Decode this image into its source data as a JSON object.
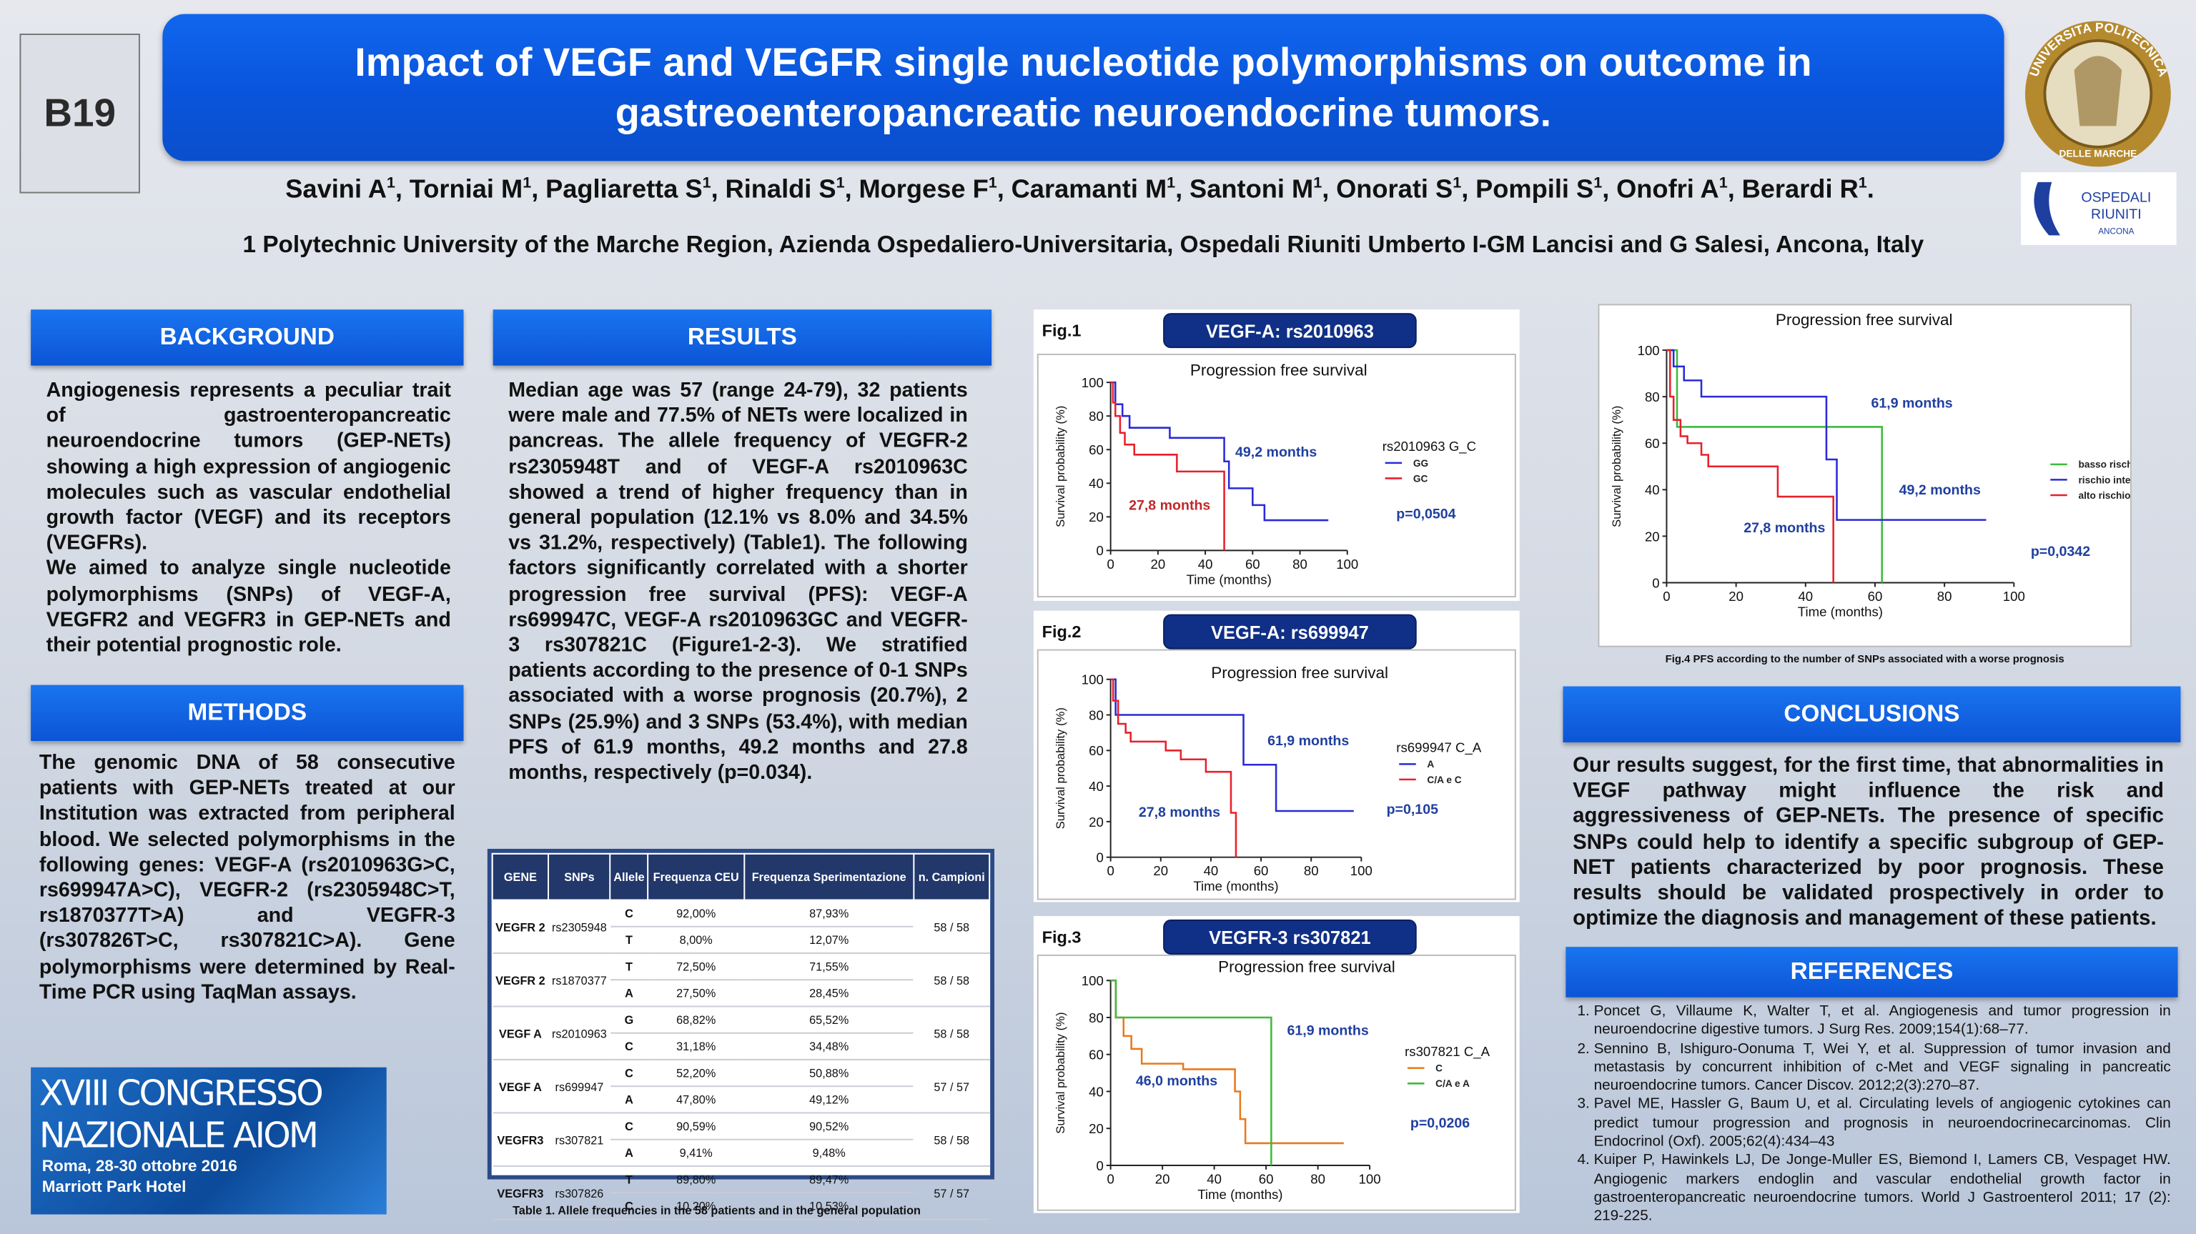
{
  "badge": "B19",
  "title": "Impact of VEGF and VEGFR single nucleotide polymorphisms on outcome in gastreoenteropancreatic neuroendocrine tumors.",
  "authors": [
    {
      "name": "Savini A",
      "sup": "1",
      "punct": ","
    },
    {
      "name": "Torniai M",
      "sup": "1",
      "punct": ","
    },
    {
      "name": "Pagliaretta S",
      "sup": "1",
      "punct": ","
    },
    {
      "name": "Rinaldi S",
      "sup": "1",
      "punct": ","
    },
    {
      "name": "Morgese F",
      "sup": "1",
      "punct": ","
    },
    {
      "name": "Caramanti M",
      "sup": "1",
      "punct": ","
    },
    {
      "name": "Santoni M",
      "sup": "1",
      "punct": ","
    },
    {
      "name": "Onorati S",
      "sup": "1",
      "punct": ","
    },
    {
      "name": "Pompili S",
      "sup": "1",
      "punct": ","
    },
    {
      "name": "Onofri A",
      "sup": "1",
      "punct": ","
    },
    {
      "name": "Berardi R",
      "sup": "1",
      "punct": "."
    }
  ],
  "affiliation": "1 Polytechnic University of the Marche Region, Azienda Ospedaliero-Universitaria, Ospedali Riuniti Umberto I-GM Lancisi and G Salesi, Ancona, Italy",
  "logos": {
    "university_top": "UNIVERSITA POLITECNICA",
    "university_bottom": "DELLE MARCHE",
    "hospital_line1": "OSPEDALI",
    "hospital_line2": "RIUNITI",
    "hospital_line3": "ANCONA"
  },
  "background": {
    "heading": "BACKGROUND",
    "paragraphs": [
      "Angiogenesis represents a peculiar trait of gastroenteropancreatic neuroendocrine tumors (GEP-NETs) showing a high expression of angiogenic molecules such as vascular endothelial growth factor (VEGF) and its receptors (VEGFRs).",
      "We aimed to analyze single nucleotide polymorphisms (SNPs) of VEGF-A, VEGFR2 and VEGFR3 in GEP-NETs and their potential prognostic role."
    ]
  },
  "methods": {
    "heading": "METHODS",
    "text": "The genomic DNA of 58 consecutive patients with GEP-NETs treated at our Institution was extracted from peripheral blood. We selected polymorphisms in the following genes: VEGF-A (rs2010963G>C, rs699947A>C), VEGFR-2 (rs2305948C>T, rs1870377T>A) and VEGFR-3 (rs307826T>C, rs307821C>A). Gene polymorphisms were determined by Real-Time PCR using TaqMan assays."
  },
  "results": {
    "heading": "RESULTS",
    "text": "Median age was 57 (range 24-79), 32 patients were male and 77.5% of NETs were localized in pancreas. The allele frequency of VEGFR-2 rs2305948T and of VEGF-A rs2010963C showed a trend of higher frequency than in general population (12.1% vs 8.0% and 34.5% vs 31.2%, respectively) (Table1). The following factors significantly correlated with a shorter progression free survival (PFS): VEGF-A rs699947C, VEGF-A rs2010963GC and VEGFR-3 rs307821C (Figure1-2-3). We stratified patients according to the presence of 0-1 SNPs associated with a worse prognosis (20.7%), 2 SNPs (25.9%) and 3 SNPs (53.4%), with median PFS of 61.9 months, 49.2 months and 27.8 months, respectively (p=0.034)."
  },
  "conclusions": {
    "heading": "CONCLUSIONS",
    "text": "Our results suggest, for the first time, that abnormalities in VEGF pathway might influence the risk and aggressiveness of GEP-NETs. The presence of specific SNPs could help to identify a specific subgroup of GEP-NET patients characterized by poor prognosis. These results should be validated prospectively in order to optimize the diagnosis and management of these patients."
  },
  "references": {
    "heading": "REFERENCES",
    "items": [
      "Poncet G, Villaume K, Walter T, et al. Angiogenesis and tumor progression in neuroendocrine digestive tumors. J Surg Res. 2009;154(1):68–77.",
      "Sennino B, Ishiguro-Oonuma T, Wei Y, et al. Suppression of tumor invasion and metastasis by concurrent inhibition of c-Met and VEGF signaling in pancreatic neuroendocrine tumors. Cancer Discov. 2012;2(3):270–87.",
      "Pavel ME, Hassler G, Baum U, et al. Circulating levels of angiogenic cytokines can predict tumour progression and prognosis in neuroendocrinecarcinomas. Clin Endocrinol (Oxf). 2005;62(4):434–43",
      "Kuiper P, Hawinkels LJ, De Jonge-Muller ES, Biemond I, Lamers CB, Vespaget HW. Angiogenic markers endoglin and vascular endothelial growth factor in gastroenteropancreatic neuroendocrine tumors. World J Gastroenterol 2011; 17 (2): 219-225."
    ]
  },
  "congress": {
    "line1": "XVIII CONGRESSO",
    "line2": "NAZIONALE AIOM",
    "line3": "Roma, 28-30 ottobre 2016",
    "line4": "Marriott Park Hotel"
  },
  "table": {
    "columns": [
      "GENE",
      "SNPs",
      "Allele",
      "Frequenza CEU",
      "Frequenza Sperimentazione",
      "n. Campioni"
    ],
    "rows": [
      {
        "gene": "VEGFR 2",
        "snp": "rs2305948",
        "alleles": [
          [
            "C",
            "92,00%",
            "87,93%"
          ],
          [
            "T",
            "8,00%",
            "12,07%"
          ]
        ],
        "samples": "58 / 58"
      },
      {
        "gene": "VEGFR 2",
        "snp": "rs1870377",
        "alleles": [
          [
            "T",
            "72,50%",
            "71,55%"
          ],
          [
            "A",
            "27,50%",
            "28,45%"
          ]
        ],
        "samples": "58 / 58"
      },
      {
        "gene": "VEGF A",
        "snp": "rs2010963",
        "alleles": [
          [
            "G",
            "68,82%",
            "65,52%"
          ],
          [
            "C",
            "31,18%",
            "34,48%"
          ]
        ],
        "samples": "58 / 58"
      },
      {
        "gene": "VEGF A",
        "snp": "rs699947",
        "alleles": [
          [
            "C",
            "52,20%",
            "50,88%"
          ],
          [
            "A",
            "47,80%",
            "49,12%"
          ]
        ],
        "samples": "57 / 57"
      },
      {
        "gene": "VEGFR3",
        "snp": "rs307821",
        "alleles": [
          [
            "C",
            "90,59%",
            "90,52%"
          ],
          [
            "A",
            "9,41%",
            "9,48%"
          ]
        ],
        "samples": "58 / 58"
      },
      {
        "gene": "VEGFR3",
        "snp": "rs307826",
        "alleles": [
          [
            "T",
            "89,80%",
            "89,47%"
          ],
          [
            "C",
            "10,20%",
            "10,53%"
          ]
        ],
        "samples": "57 / 57"
      }
    ],
    "caption": "Table 1. Allele frequencies in the 58 patients and in the general population"
  },
  "chart_data": [
    {
      "type": "line",
      "figure_label": "Fig.1",
      "badge": "VEGF-A: rs2010963",
      "title": "Progression free survival",
      "x_label": "Time (months)",
      "y_label": "Survival probability (%)",
      "xlim": [
        0,
        100
      ],
      "xticks": [
        0,
        20,
        40,
        60,
        80,
        100
      ],
      "ylim": [
        0,
        100
      ],
      "yticks": [
        0,
        20,
        40,
        60,
        80,
        100
      ],
      "legend_title": "rs2010963 G_C",
      "series": [
        {
          "name": "GG",
          "color": "#2a2ad8",
          "x": [
            0,
            2,
            2,
            5,
            5,
            8,
            8,
            25,
            25,
            48,
            48,
            50,
            50,
            60,
            60,
            65,
            65,
            92
          ],
          "values": [
            100,
            100,
            87,
            87,
            80,
            80,
            73,
            73,
            67,
            67,
            53,
            53,
            37,
            37,
            27,
            27,
            18,
            18
          ]
        },
        {
          "name": "GC",
          "color": "#e8202a",
          "x": [
            0,
            1,
            1,
            2,
            2,
            4,
            4,
            6,
            6,
            10,
            10,
            28,
            28,
            48,
            48
          ],
          "values": [
            100,
            100,
            88,
            88,
            80,
            80,
            70,
            70,
            63,
            63,
            57,
            57,
            47,
            47,
            0
          ]
        }
      ],
      "annotations": [
        "49,2 months",
        "27,8 months",
        "p=0,0504"
      ]
    },
    {
      "type": "line",
      "figure_label": "Fig.2",
      "badge": "VEGF-A: rs699947",
      "title": "Progression free survival",
      "x_label": "Time (months)",
      "y_label": "Survival probability (%)",
      "xlim": [
        0,
        100
      ],
      "xticks": [
        0,
        20,
        40,
        60,
        80,
        100
      ],
      "ylim": [
        0,
        100
      ],
      "yticks": [
        0,
        20,
        40,
        60,
        80,
        100
      ],
      "legend_title": "rs699947 C_A",
      "series": [
        {
          "name": "A",
          "color": "#2a2ad8",
          "x": [
            0,
            2,
            2,
            53,
            53,
            66,
            66,
            97
          ],
          "values": [
            100,
            100,
            80,
            80,
            52,
            52,
            26,
            26
          ]
        },
        {
          "name": "C/A e C",
          "color": "#e8202a",
          "x": [
            0,
            1,
            1,
            3,
            3,
            6,
            6,
            8,
            8,
            22,
            22,
            28,
            28,
            38,
            38,
            48,
            48,
            50,
            50
          ],
          "values": [
            100,
            100,
            88,
            88,
            75,
            75,
            70,
            70,
            65,
            65,
            60,
            60,
            55,
            55,
            48,
            48,
            25,
            25,
            0
          ]
        }
      ],
      "annotations": [
        "61,9 months",
        "27,8 months",
        "p=0,105"
      ]
    },
    {
      "type": "line",
      "figure_label": "Fig.3",
      "badge": "VEGFR-3 rs307821",
      "title": "Progression free survival",
      "x_label": "Time (months)",
      "y_label": "Survival probability (%)",
      "xlim": [
        0,
        100
      ],
      "xticks": [
        0,
        20,
        40,
        60,
        80,
        100
      ],
      "ylim": [
        0,
        100
      ],
      "yticks": [
        0,
        20,
        40,
        60,
        80,
        100
      ],
      "legend_title": "rs307821 C_A",
      "series": [
        {
          "name": "C",
          "color": "#e87a1e",
          "x": [
            0,
            2,
            2,
            5,
            5,
            8,
            8,
            12,
            12,
            28,
            28,
            48,
            48,
            50,
            50,
            52,
            52,
            90
          ],
          "values": [
            100,
            100,
            80,
            80,
            70,
            70,
            63,
            63,
            55,
            55,
            52,
            52,
            40,
            40,
            25,
            25,
            12,
            12
          ]
        },
        {
          "name": "C/A e A",
          "color": "#3dbb3d",
          "x": [
            0,
            2,
            2,
            62,
            62
          ],
          "values": [
            100,
            100,
            80,
            80,
            0
          ]
        }
      ],
      "annotations": [
        "61,9 months",
        "46,0 months",
        "p=0,0206"
      ]
    },
    {
      "type": "line",
      "title": "Progression free survival",
      "x_label": "Time (months)",
      "y_label": "Survival probability (%)",
      "xlim": [
        0,
        100
      ],
      "xticks": [
        0,
        20,
        40,
        60,
        80,
        100
      ],
      "ylim": [
        0,
        100
      ],
      "yticks": [
        0,
        20,
        40,
        60,
        80,
        100
      ],
      "series": [
        {
          "name": "basso rischio",
          "color": "#3dbb3d",
          "x": [
            0,
            3,
            3,
            62,
            62
          ],
          "values": [
            100,
            100,
            67,
            67,
            0
          ]
        },
        {
          "name": "rischio intermedio",
          "color": "#2a2ad8",
          "x": [
            0,
            2,
            2,
            5,
            5,
            10,
            10,
            46,
            46,
            49,
            49,
            92
          ],
          "values": [
            100,
            100,
            93,
            93,
            87,
            87,
            80,
            80,
            53,
            53,
            27,
            27
          ]
        },
        {
          "name": "alto rischio",
          "color": "#e8202a",
          "x": [
            0,
            1,
            1,
            2,
            2,
            4,
            4,
            6,
            6,
            10,
            10,
            12,
            12,
            32,
            32,
            48,
            48
          ],
          "values": [
            100,
            100,
            80,
            80,
            70,
            70,
            63,
            63,
            60,
            60,
            55,
            55,
            50,
            50,
            37,
            37,
            0
          ]
        }
      ],
      "annotations": [
        "61,9 months",
        "49,2 months",
        "27,8 months",
        "p=0,0342"
      ],
      "caption": "Fig.4 PFS according to the number of SNPs associated with a worse prognosis"
    }
  ]
}
